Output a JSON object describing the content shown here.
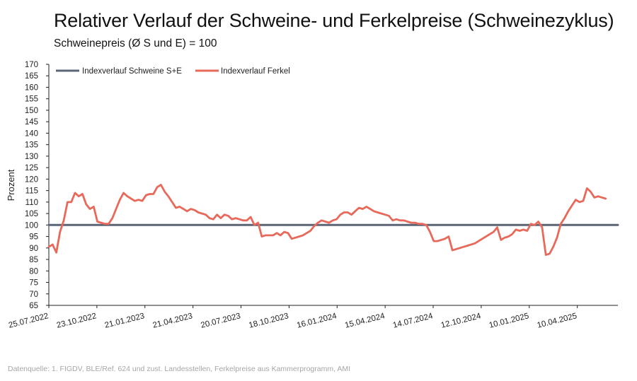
{
  "title": "Relativer Verlauf der Schweine- und Ferkelpreise (Schweinezyklus)",
  "subtitle": "Schweinepreis (Ø S und E) = 100",
  "source": "Datenquelle: 1. FIGDV, BLE/Ref. 624 und zust. Landesstellen, Ferkelpreise aus Kammerprogramm, AMI",
  "colors": {
    "schweine": "#5b6576",
    "ferkel": "#e8695a",
    "axis": "#222222"
  },
  "chart_data": {
    "type": "line",
    "ylabel": "Prozent",
    "ylim": [
      65,
      170
    ],
    "ytick_step": 5,
    "grid": false,
    "legend_position": "top-left",
    "x_tick_labels": [
      "25.07.2022",
      "23.10.2022",
      "21.01.2023",
      "21.04.2023",
      "20.07.2023",
      "18.10.2023",
      "16.01.2024",
      "15.04.2024",
      "14.07.2024",
      "12.10.2024",
      "10.01.2025",
      "10.04.2025"
    ],
    "x_range": [
      "25.07.2022",
      "25.06.2025"
    ],
    "series": [
      {
        "name": "Indexverlauf Schweine S+E",
        "points": [
          [
            "25.07.2022",
            100
          ],
          [
            "25.06.2025",
            100
          ]
        ]
      },
      {
        "name": "Indexverlauf Ferkel",
        "points": [
          [
            "25.07.2022",
            90.5
          ],
          [
            "01.08.2022",
            91.5
          ],
          [
            "08.08.2022",
            88
          ],
          [
            "15.08.2022",
            97
          ],
          [
            "22.08.2022",
            102
          ],
          [
            "29.08.2022",
            110
          ],
          [
            "05.09.2022",
            110
          ],
          [
            "12.09.2022",
            114
          ],
          [
            "19.09.2022",
            112.5
          ],
          [
            "26.09.2022",
            113.5
          ],
          [
            "03.10.2022",
            109
          ],
          [
            "10.10.2022",
            107
          ],
          [
            "17.10.2022",
            108
          ],
          [
            "24.10.2022",
            101.5
          ],
          [
            "31.10.2022",
            101
          ],
          [
            "07.11.2022",
            100.5
          ],
          [
            "14.11.2022",
            100.5
          ],
          [
            "21.11.2022",
            103
          ],
          [
            "28.11.2022",
            107
          ],
          [
            "05.12.2022",
            111
          ],
          [
            "12.12.2022",
            114
          ],
          [
            "19.12.2022",
            112.5
          ],
          [
            "26.12.2022",
            111.5
          ],
          [
            "02.01.2023",
            110.5
          ],
          [
            "09.01.2023",
            111
          ],
          [
            "16.01.2023",
            110.5
          ],
          [
            "23.01.2023",
            113
          ],
          [
            "30.01.2023",
            113.5
          ],
          [
            "06.02.2023",
            113.5
          ],
          [
            "13.02.2023",
            116.5
          ],
          [
            "20.02.2023",
            117.5
          ],
          [
            "27.02.2023",
            114.5
          ],
          [
            "06.03.2023",
            112.5
          ],
          [
            "13.03.2023",
            110
          ],
          [
            "20.03.2023",
            107.5
          ],
          [
            "27.03.2023",
            108
          ],
          [
            "03.04.2023",
            107
          ],
          [
            "10.04.2023",
            106
          ],
          [
            "17.04.2023",
            107
          ],
          [
            "24.04.2023",
            106.5
          ],
          [
            "01.05.2023",
            105.5
          ],
          [
            "08.05.2023",
            105
          ],
          [
            "15.05.2023",
            104.5
          ],
          [
            "22.05.2023",
            103
          ],
          [
            "29.05.2023",
            102.5
          ],
          [
            "05.06.2023",
            104.5
          ],
          [
            "12.06.2023",
            103
          ],
          [
            "19.06.2023",
            104.5
          ],
          [
            "26.06.2023",
            104
          ],
          [
            "03.07.2023",
            102.5
          ],
          [
            "10.07.2023",
            103
          ],
          [
            "17.07.2023",
            102.5
          ],
          [
            "24.07.2023",
            102
          ],
          [
            "31.07.2023",
            102
          ],
          [
            "07.08.2023",
            103.5
          ],
          [
            "14.08.2023",
            100
          ],
          [
            "21.08.2023",
            101
          ],
          [
            "28.08.2023",
            95
          ],
          [
            "04.09.2023",
            95.5
          ],
          [
            "11.09.2023",
            95.5
          ],
          [
            "18.09.2023",
            95.5
          ],
          [
            "25.09.2023",
            96.5
          ],
          [
            "02.10.2023",
            95.5
          ],
          [
            "09.10.2023",
            97
          ],
          [
            "16.10.2023",
            96.5
          ],
          [
            "23.10.2023",
            94
          ],
          [
            "30.10.2023",
            94.5
          ],
          [
            "06.11.2023",
            95
          ],
          [
            "13.11.2023",
            95.5
          ],
          [
            "20.11.2023",
            96.5
          ],
          [
            "27.11.2023",
            97.5
          ],
          [
            "04.12.2023",
            99.5
          ],
          [
            "11.12.2023",
            101
          ],
          [
            "18.12.2023",
            102
          ],
          [
            "25.12.2023",
            101.5
          ],
          [
            "01.01.2024",
            101
          ],
          [
            "08.01.2024",
            102
          ],
          [
            "15.01.2024",
            102.5
          ],
          [
            "22.01.2024",
            104.5
          ],
          [
            "29.01.2024",
            105.5
          ],
          [
            "05.02.2024",
            105.5
          ],
          [
            "12.02.2024",
            104.5
          ],
          [
            "19.02.2024",
            106
          ],
          [
            "26.02.2024",
            107.5
          ],
          [
            "04.03.2024",
            107
          ],
          [
            "11.03.2024",
            108
          ],
          [
            "18.03.2024",
            107
          ],
          [
            "25.03.2024",
            106
          ],
          [
            "01.04.2024",
            105.5
          ],
          [
            "08.04.2024",
            105
          ],
          [
            "15.04.2024",
            104.5
          ],
          [
            "22.04.2024",
            104
          ],
          [
            "29.04.2024",
            102
          ],
          [
            "06.05.2024",
            102.5
          ],
          [
            "13.05.2024",
            102
          ],
          [
            "20.05.2024",
            102
          ],
          [
            "27.05.2024",
            101.5
          ],
          [
            "03.06.2024",
            101
          ],
          [
            "10.06.2024",
            101
          ],
          [
            "17.06.2024",
            100.5
          ],
          [
            "24.06.2024",
            100.5
          ],
          [
            "01.07.2024",
            100
          ],
          [
            "08.07.2024",
            97
          ],
          [
            "15.07.2024",
            93
          ],
          [
            "22.07.2024",
            93
          ],
          [
            "29.07.2024",
            93.5
          ],
          [
            "05.08.2024",
            94
          ],
          [
            "12.08.2024",
            95
          ],
          [
            "19.08.2024",
            89
          ],
          [
            "26.08.2024",
            89.5
          ],
          [
            "02.09.2024",
            90
          ],
          [
            "09.09.2024",
            90.5
          ],
          [
            "16.09.2024",
            91
          ],
          [
            "23.09.2024",
            91.5
          ],
          [
            "30.09.2024",
            92
          ],
          [
            "07.10.2024",
            93
          ],
          [
            "14.10.2024",
            94
          ],
          [
            "21.10.2024",
            95
          ],
          [
            "28.10.2024",
            96
          ],
          [
            "04.11.2024",
            97
          ],
          [
            "11.11.2024",
            99
          ],
          [
            "18.11.2024",
            93.5
          ],
          [
            "25.11.2024",
            94.5
          ],
          [
            "02.12.2024",
            95
          ],
          [
            "09.12.2024",
            96
          ],
          [
            "16.12.2024",
            98
          ],
          [
            "23.12.2024",
            97.5
          ],
          [
            "30.12.2024",
            98
          ],
          [
            "06.01.2025",
            97.5
          ],
          [
            "13.01.2025",
            100.5
          ],
          [
            "20.01.2025",
            100
          ],
          [
            "27.01.2025",
            101.5
          ],
          [
            "03.02.2025",
            99
          ],
          [
            "10.02.2025",
            87
          ],
          [
            "17.02.2025",
            87.5
          ],
          [
            "24.02.2025",
            90.5
          ],
          [
            "03.03.2025",
            94.5
          ],
          [
            "10.03.2025",
            100.5
          ],
          [
            "17.03.2025",
            103
          ],
          [
            "24.03.2025",
            106
          ],
          [
            "31.03.2025",
            108.5
          ],
          [
            "07.04.2025",
            111
          ],
          [
            "14.04.2025",
            110
          ],
          [
            "21.04.2025",
            110.5
          ],
          [
            "28.04.2025",
            116
          ],
          [
            "05.05.2025",
            114.5
          ],
          [
            "12.05.2025",
            112
          ],
          [
            "19.05.2025",
            112.5
          ],
          [
            "26.05.2025",
            112
          ],
          [
            "02.06.2025",
            111.5
          ]
        ]
      }
    ]
  }
}
